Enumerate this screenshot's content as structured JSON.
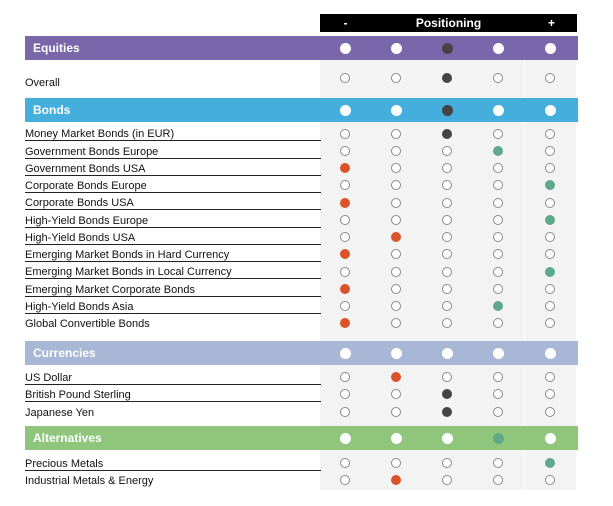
{
  "colors": {
    "equities": "#7a66aa",
    "bonds": "#44aedc",
    "currencies": "#a9b7d6",
    "alternatives": "#8fc67c",
    "underweight": "#d9542b",
    "neutral": "#444444",
    "overweight": "#5fa889",
    "white": "#ffffff"
  },
  "header": {
    "minus": "-",
    "positioning": "Positioning",
    "plus": "+"
  },
  "legend_semantics": [
    "neutral",
    "underweight",
    "overweight"
  ],
  "sections": [
    {
      "key": "equities",
      "title": "Equities",
      "header_fill": [
        0,
        0,
        2,
        0,
        0
      ],
      "rows": [
        {
          "label": "Overall",
          "position": 2,
          "state": "neutral"
        }
      ]
    },
    {
      "key": "bonds",
      "title": "Bonds",
      "header_fill": [
        0,
        0,
        2,
        0,
        0
      ],
      "rows": [
        {
          "label": "Money Market Bonds (in EUR)",
          "position": 2,
          "state": "neutral"
        },
        {
          "label": "Government Bonds Europe",
          "position": 3,
          "state": "overweight"
        },
        {
          "label": "Government Bonds USA",
          "position": 0,
          "state": "underweight"
        },
        {
          "label": "Corporate Bonds Europe",
          "position": 4,
          "state": "overweight"
        },
        {
          "label": "Corporate Bonds USA",
          "position": 0,
          "state": "underweight"
        },
        {
          "label": "High-Yield Bonds Europe",
          "position": 4,
          "state": "overweight"
        },
        {
          "label": "High-Yield Bonds USA",
          "position": 1,
          "state": "underweight"
        },
        {
          "label": "Emerging Market Bonds in Hard Currency",
          "position": 0,
          "state": "underweight"
        },
        {
          "label": "Emerging Market Bonds in Local Currency",
          "position": 4,
          "state": "overweight"
        },
        {
          "label": "Emerging Market Corporate Bonds",
          "position": 0,
          "state": "underweight"
        },
        {
          "label": "High-Yield Bonds Asia",
          "position": 3,
          "state": "overweight"
        },
        {
          "label": "Global Convertible Bonds",
          "position": 0,
          "state": "underweight"
        }
      ]
    },
    {
      "key": "currencies",
      "title": "Currencies",
      "header_fill": [
        0,
        0,
        0,
        0,
        0
      ],
      "rows": [
        {
          "label": "US Dollar",
          "position": 1,
          "state": "underweight"
        },
        {
          "label": "British Pound Sterling",
          "position": 2,
          "state": "neutral"
        },
        {
          "label": "Japanese Yen",
          "position": 2,
          "state": "neutral"
        }
      ]
    },
    {
      "key": "alternatives",
      "title": "Alternatives",
      "header_fill": [
        0,
        0,
        0,
        3,
        0
      ],
      "rows": [
        {
          "label": "Precious Metals",
          "position": 4,
          "state": "overweight"
        },
        {
          "label": "Industrial Metals & Energy",
          "position": 1,
          "state": "underweight"
        }
      ]
    }
  ]
}
